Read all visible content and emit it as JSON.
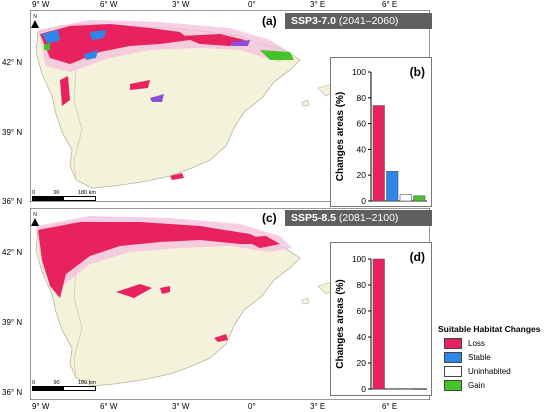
{
  "panel_top": {
    "label": "(a)",
    "scenario": "SSP3-7.0",
    "period": "(2041–2060)",
    "x_ticks": [
      "9° W",
      "6° W",
      "3° W",
      "0°",
      "3° E",
      "6° E"
    ],
    "y_ticks": [
      "42° N",
      "39° N",
      "36° N"
    ],
    "scale": {
      "ticks": [
        "0",
        "90",
        "180 km"
      ]
    }
  },
  "panel_bottom": {
    "label": "(c)",
    "scenario": "SSP5-8.5",
    "period": "(2081–2100)",
    "x_ticks": [
      "9° W",
      "6° W",
      "3° W",
      "0°",
      "3° E",
      "6° E"
    ],
    "y_ticks": [
      "42° N",
      "39° N",
      "36° N"
    ],
    "scale": {
      "ticks": [
        "0",
        "90",
        "180 km"
      ]
    }
  },
  "north_arrow": "N",
  "legend": {
    "title": "Suitable Habitat Changes",
    "items": [
      {
        "label": "Loss",
        "color": "#e8215f"
      },
      {
        "label": "Stable",
        "color": "#2f86e8"
      },
      {
        "label": "Uninhabited",
        "color": "#ffffff"
      },
      {
        "label": "Gain",
        "color": "#45c42a"
      }
    ]
  },
  "colors": {
    "land": "#f5f2dc",
    "loss": "#e8215f",
    "stable": "#2f86e8",
    "gain": "#45c42a",
    "halo": "#f4bfdc",
    "purple": "#8a4fd6"
  },
  "chart_data": [
    {
      "type": "bar",
      "panel": "(b)",
      "ylabel": "Changes areas (%)",
      "ylim": [
        0,
        100
      ],
      "y_ticks": [
        "0",
        "20",
        "40",
        "60",
        "80",
        "100"
      ],
      "categories": [
        "Loss",
        "Stable",
        "Uninhabited",
        "Gain"
      ],
      "values": [
        74,
        23,
        5,
        4
      ]
    },
    {
      "type": "bar",
      "panel": "(d)",
      "ylabel": "Changes areas (%)",
      "ylim": [
        0,
        100
      ],
      "y_ticks": [
        "0",
        "20",
        "40",
        "60",
        "80",
        "100"
      ],
      "categories": [
        "Loss",
        "Stable",
        "Uninhabited",
        "Gain"
      ],
      "values": [
        100,
        0.3,
        0.3,
        0
      ]
    }
  ]
}
